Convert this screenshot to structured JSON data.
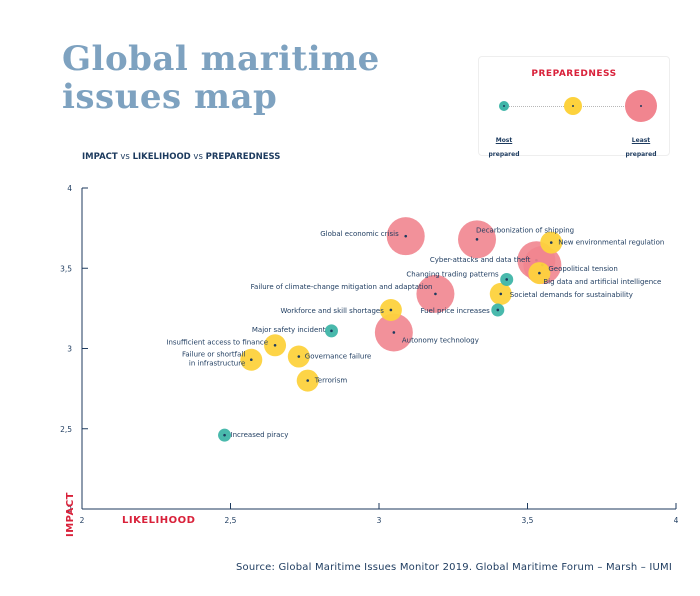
{
  "title_line1": "Global maritime",
  "title_line2": "issues map",
  "subtitle": {
    "impact": "IMPACT",
    "vs1": " vs ",
    "likelihood": "LIKELIHOOD",
    "vs2": " vs ",
    "preparedness": "PREPAREDNESS"
  },
  "legend": {
    "title": "PREPAREDNESS",
    "most_label_line1": "Most",
    "most_label_line2": "prepared",
    "least_label_line1": "Least",
    "least_label_line2": "prepared"
  },
  "source": "Source: Global Maritime Issues Monitor 2019. Global Maritime Forum – Marsh – IUMI",
  "colors": {
    "high": "#3fb5a8",
    "medium": "#fdd23d",
    "low": "#f1858f",
    "axis_label": "#d9213a",
    "text": "#1c3a5e"
  },
  "chart_data": {
    "type": "scatter",
    "xlabel": "LIKELIHOOD",
    "ylabel": "IMPACT",
    "xlim": [
      2,
      4
    ],
    "ylim": [
      2,
      4
    ],
    "xticks": [
      "2",
      "2,5",
      "3",
      "3,5",
      "4"
    ],
    "yticks": [
      "2",
      "2,5",
      "3",
      "3,5",
      "4"
    ],
    "size_encoding": "preparedness (larger = less prepared)",
    "points": [
      {
        "label": "Increased piracy",
        "x": 2.48,
        "y": 2.46,
        "preparedness": "high"
      },
      {
        "label": "Insufficient access to finance",
        "x": 2.65,
        "y": 3.02,
        "preparedness": "medium"
      },
      {
        "label": "Failure or shortfall\nin infrastructure",
        "x": 2.57,
        "y": 2.93,
        "preparedness": "medium"
      },
      {
        "label": "Governance failure",
        "x": 2.73,
        "y": 2.95,
        "preparedness": "medium"
      },
      {
        "label": "Terrorism",
        "x": 2.76,
        "y": 2.8,
        "preparedness": "medium"
      },
      {
        "label": "Major safety incident",
        "x": 2.84,
        "y": 3.11,
        "preparedness": "high"
      },
      {
        "label": "Workforce and skill shortages",
        "x": 3.04,
        "y": 3.24,
        "preparedness": "medium"
      },
      {
        "label": "Autonomy technology",
        "x": 3.05,
        "y": 3.1,
        "preparedness": "low"
      },
      {
        "label": "Global economic crisis",
        "x": 3.09,
        "y": 3.7,
        "preparedness": "low"
      },
      {
        "label": "Failure of climate-change mitigation and adaptation",
        "x": 3.19,
        "y": 3.34,
        "preparedness": "low"
      },
      {
        "label": "Decarbonization of shipping",
        "x": 3.33,
        "y": 3.68,
        "preparedness": "low"
      },
      {
        "label": "Fuel price increases",
        "x": 3.4,
        "y": 3.24,
        "preparedness": "high"
      },
      {
        "label": "Societal demands for sustainability",
        "x": 3.41,
        "y": 3.34,
        "preparedness": "medium"
      },
      {
        "label": "Changing trading patterns",
        "x": 3.43,
        "y": 3.43,
        "preparedness": "high"
      },
      {
        "label": "Cyber-attacks and data theft",
        "x": 3.53,
        "y": 3.55,
        "preparedness": "low"
      },
      {
        "label": "Big data and artificial intelligence",
        "x": 3.54,
        "y": 3.47,
        "preparedness": "medium"
      },
      {
        "label": "Geopolitical tension",
        "x": 3.55,
        "y": 3.52,
        "preparedness": "low"
      },
      {
        "label": "New environmental regulation",
        "x": 3.58,
        "y": 3.66,
        "preparedness": "medium"
      }
    ]
  }
}
